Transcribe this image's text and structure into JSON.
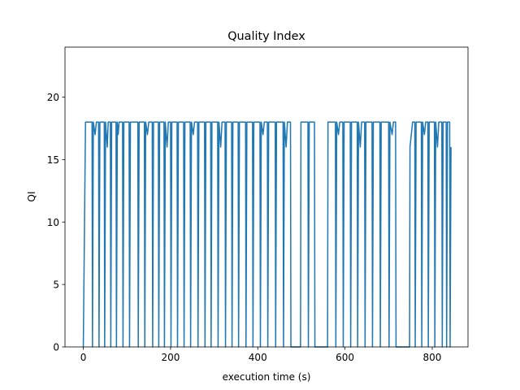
{
  "chart_data": {
    "type": "line",
    "title": "Quality Index",
    "x_label": "execution time (s)",
    "y_label": "QI",
    "xlim": [
      -42,
      882
    ],
    "ylim": [
      0,
      24
    ],
    "xticks": [
      0,
      200,
      400,
      600,
      800
    ],
    "yticks": [
      0,
      5,
      10,
      15,
      20
    ],
    "series": [
      {
        "color": "#1f77b4",
        "x": [
          0,
          5,
          20,
          21,
          23,
          27,
          30,
          35,
          36,
          38,
          48,
          49,
          51,
          55,
          57,
          62,
          63,
          65,
          75,
          76,
          78,
          80,
          82,
          90,
          91,
          93,
          105,
          106,
          108,
          125,
          126,
          128,
          140,
          141,
          143,
          147,
          150,
          158,
          159,
          161,
          172,
          173,
          175,
          185,
          186,
          188,
          192,
          195,
          200,
          201,
          203,
          215,
          216,
          218,
          230,
          231,
          233,
          245,
          246,
          248,
          252,
          255,
          262,
          263,
          265,
          278,
          279,
          281,
          292,
          293,
          295,
          308,
          309,
          311,
          315,
          318,
          325,
          326,
          328,
          340,
          341,
          343,
          355,
          356,
          358,
          372,
          373,
          375,
          388,
          389,
          391,
          405,
          406,
          408,
          412,
          415,
          422,
          423,
          425,
          440,
          441,
          443,
          458,
          459,
          461,
          465,
          468,
          475,
          476,
          498,
          499,
          515,
          516,
          518,
          530,
          531,
          560,
          561,
          578,
          579,
          581,
          585,
          588,
          595,
          596,
          598,
          612,
          613,
          615,
          628,
          629,
          631,
          635,
          638,
          645,
          646,
          648,
          662,
          663,
          665,
          680,
          681,
          683,
          700,
          701,
          703,
          708,
          711,
          716,
          717,
          748,
          749,
          755,
          760,
          761,
          763,
          775,
          776,
          778,
          782,
          785,
          790,
          791,
          793,
          805,
          806,
          808,
          812,
          815,
          822,
          823,
          825,
          832,
          833,
          835,
          840,
          841,
          843
        ],
        "values": [
          0,
          18,
          18,
          0,
          18,
          17,
          18,
          18,
          0,
          18,
          18,
          0,
          18,
          16,
          18,
          18,
          0,
          18,
          18,
          0,
          18,
          17,
          18,
          18,
          0,
          18,
          18,
          0,
          18,
          18,
          0,
          18,
          18,
          0,
          18,
          17,
          18,
          18,
          0,
          18,
          18,
          0,
          18,
          18,
          0,
          18,
          16,
          18,
          18,
          0,
          18,
          18,
          0,
          18,
          18,
          0,
          18,
          18,
          0,
          18,
          17,
          18,
          18,
          0,
          18,
          18,
          0,
          18,
          18,
          0,
          18,
          18,
          0,
          18,
          16,
          18,
          18,
          0,
          18,
          18,
          0,
          18,
          18,
          0,
          18,
          18,
          0,
          18,
          18,
          0,
          18,
          18,
          0,
          18,
          17,
          18,
          18,
          0,
          18,
          18,
          0,
          18,
          18,
          0,
          18,
          16,
          18,
          18,
          0,
          0,
          18,
          18,
          0,
          18,
          18,
          0,
          0,
          18,
          18,
          0,
          18,
          17,
          18,
          18,
          0,
          18,
          18,
          0,
          18,
          18,
          0,
          18,
          16,
          18,
          18,
          0,
          18,
          18,
          0,
          18,
          18,
          0,
          18,
          18,
          0,
          18,
          17,
          18,
          18,
          0,
          0,
          16,
          18,
          18,
          0,
          18,
          18,
          0,
          18,
          17,
          18,
          18,
          0,
          18,
          18,
          0,
          18,
          16,
          18,
          18,
          0,
          18,
          18,
          0,
          18,
          18,
          0,
          16
        ]
      }
    ]
  }
}
